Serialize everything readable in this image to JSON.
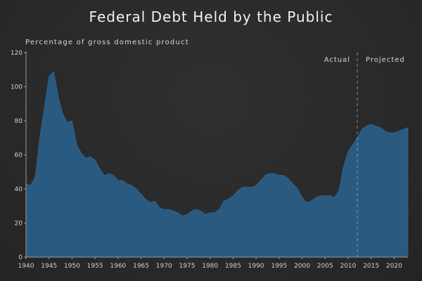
{
  "chart_data": {
    "type": "area",
    "title": "Federal Debt Held by the Public",
    "ylabel": "Percentage of gross domestic product",
    "xlabel": "",
    "xlim": [
      1940,
      2023
    ],
    "ylim": [
      0,
      120
    ],
    "x_ticks": [
      1940,
      1945,
      1950,
      1955,
      1960,
      1965,
      1970,
      1975,
      1980,
      1985,
      1990,
      1995,
      2000,
      2005,
      2010,
      2015,
      2020
    ],
    "y_ticks": [
      0,
      20,
      40,
      60,
      80,
      100,
      120
    ],
    "grid": false,
    "legend": "none",
    "area_color": "#2a5a80",
    "divider_year": 2012,
    "annotations": [
      "Actual",
      "Projected"
    ],
    "series": [
      {
        "x": [
          1940,
          1941,
          1942,
          1943,
          1944,
          1945,
          1946,
          1947,
          1948,
          1949,
          1950,
          1951,
          1952,
          1953,
          1954,
          1955,
          1956,
          1957,
          1958,
          1959,
          1960,
          1961,
          1962,
          1963,
          1964,
          1965,
          1966,
          1967,
          1968,
          1969,
          1970,
          1971,
          1972,
          1973,
          1974,
          1975,
          1976,
          1977,
          1978,
          1979,
          1980,
          1981,
          1982,
          1983,
          1984,
          1985,
          1986,
          1987,
          1988,
          1989,
          1990,
          1991,
          1992,
          1993,
          1994,
          1995,
          1996,
          1997,
          1998,
          1999,
          2000,
          2001,
          2002,
          2003,
          2004,
          2005,
          2006,
          2007,
          2008,
          2009,
          2010,
          2011,
          2012,
          2013,
          2014,
          2015,
          2016,
          2017,
          2018,
          2019,
          2020,
          2021,
          2022,
          2023
        ],
        "values": [
          43,
          42,
          47,
          70,
          88,
          106,
          109,
          94,
          84,
          79,
          80,
          66,
          61,
          58,
          59,
          57,
          52,
          48,
          49,
          48,
          45,
          45,
          43,
          42,
          40,
          37,
          34,
          32,
          33,
          29,
          28,
          28,
          27,
          26,
          24,
          25,
          27,
          28,
          27,
          25,
          26,
          26,
          28,
          33,
          34,
          36,
          39,
          41,
          41,
          41,
          42,
          45,
          48,
          49,
          49,
          48,
          48,
          46,
          43,
          40,
          35,
          32,
          33,
          35,
          36,
          36,
          36,
          35,
          39,
          53,
          62,
          66,
          70,
          75,
          77,
          78,
          77,
          76,
          74,
          73,
          73,
          74,
          75,
          76
        ]
      }
    ]
  }
}
